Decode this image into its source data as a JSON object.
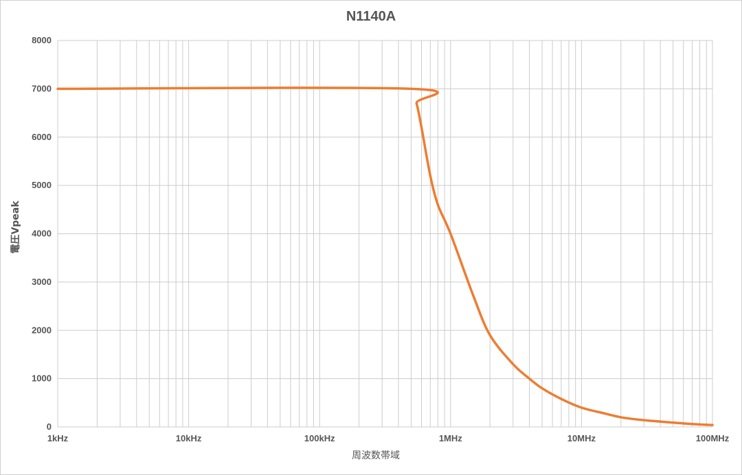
{
  "chart_data": {
    "type": "line",
    "title": "N1140A",
    "xlabel": "周波数帯域",
    "ylabel": "電圧Vpeak",
    "xscale": "log",
    "xlim": [
      1000,
      100000000
    ],
    "ylim": [
      0,
      8000
    ],
    "grid": true,
    "legend": "none",
    "xticks": [
      {
        "value": 1000,
        "label": "1kHz"
      },
      {
        "value": 10000,
        "label": "10kHz"
      },
      {
        "value": 100000,
        "label": "100kHz"
      },
      {
        "value": 1000000,
        "label": "1MHz"
      },
      {
        "value": 10000000,
        "label": "10MHz"
      },
      {
        "value": 100000000,
        "label": "100MHz"
      }
    ],
    "yticks": [
      0,
      1000,
      2000,
      3000,
      4000,
      5000,
      6000,
      7000,
      8000
    ],
    "series": [
      {
        "color": "#ed7d31",
        "x": [
          1000,
          500000,
          550000,
          600000,
          700000,
          800000,
          1000000,
          1500000,
          2000000,
          3000000,
          4000000,
          5000000,
          7000000,
          10000000,
          15000000,
          20000000,
          30000000,
          50000000,
          70000000,
          100000000
        ],
        "y": [
          7000,
          7000,
          6700,
          6200,
          5200,
          4600,
          4000,
          2700,
          1900,
          1300,
          1000,
          800,
          580,
          400,
          280,
          200,
          140,
          90,
          60,
          40
        ]
      }
    ]
  }
}
